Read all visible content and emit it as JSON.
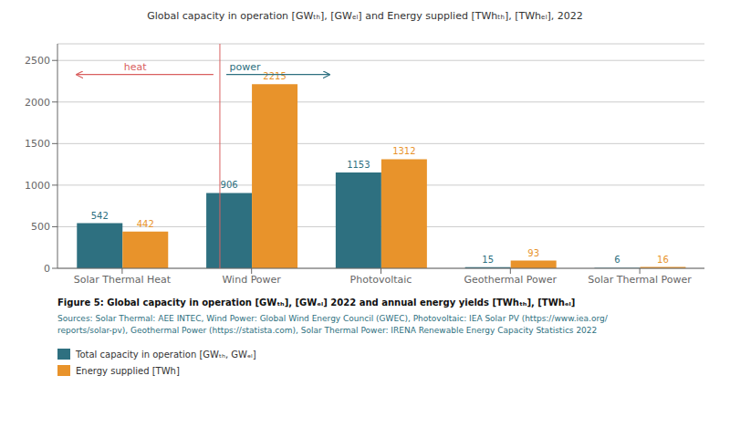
{
  "chart_data": {
    "type": "bar",
    "title": "Global capacity in operation [GWₜₕ], [GWₑₗ] and Energy supplied [TWhₜₕ], [TWhₑₗ], 2022",
    "categories": [
      "Solar Thermal Heat",
      "Wind Power",
      "Photovoltaic",
      "Geothermal Power",
      "Solar Thermal Power"
    ],
    "series": [
      {
        "name": "Total capacity in operation [GWₜₕ, GWₑₗ]",
        "color": "#2e7080",
        "values": [
          542,
          906,
          1153,
          15,
          6
        ]
      },
      {
        "name": "Energy supplied [TWh]",
        "color": "#e8932b",
        "values": [
          442,
          2215,
          1312,
          93,
          16
        ]
      }
    ],
    "ylim": [
      0,
      2700
    ],
    "yticks": [
      0,
      500,
      1000,
      1500,
      2000,
      2500
    ],
    "grid": true,
    "data_labels": true,
    "legend": "bottom",
    "annotations": [
      {
        "text": "heat",
        "y": 2330,
        "color": "#d96060",
        "direction": "left"
      },
      {
        "text": "power",
        "y": 2330,
        "color": "#2e7080",
        "direction": "right"
      }
    ],
    "divider": {
      "x": 0.755,
      "color": "#d96060"
    },
    "caption": "Figure 5: Global capacity in operation [GWₜₕ], [GWₑₗ] 2022 and annual energy yields [TWhₜₕ], [TWhₑₗ]",
    "sources": [
      "Sources: Solar Thermal: AEE INTEC, Wind Power: Global Wind Energy Council (GWEC), Photovoltaic: IEA Solar PV (https://www.iea.org/",
      "reports/solar-pv), Geothermal Power (https://statista.com), Solar Thermal Power: IRENA Renewable Energy Capacity Statistics 2022"
    ]
  }
}
